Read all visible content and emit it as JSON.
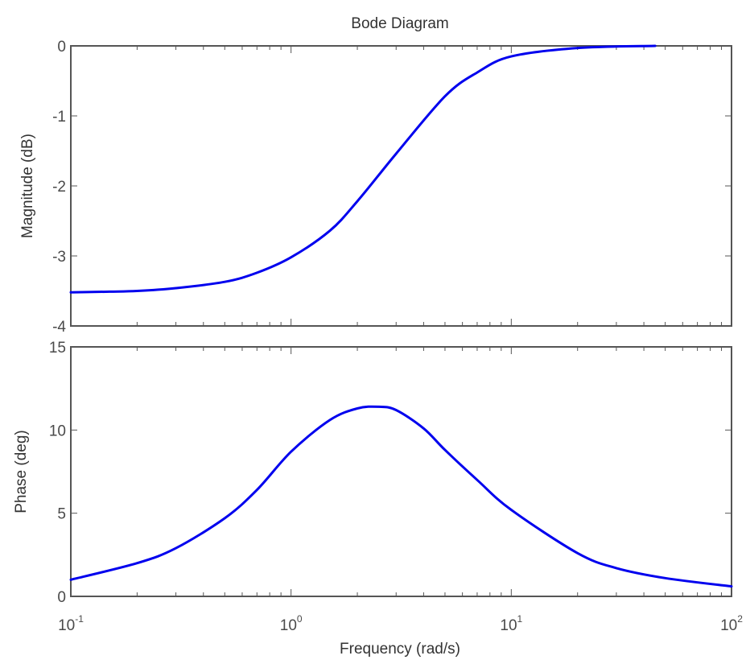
{
  "chart_data": {
    "type": "line",
    "title": "Bode Diagram",
    "xlabel": "Frequency  (rad/s)",
    "x_scale": "log",
    "xlim": [
      0.1,
      100
    ],
    "x_ticks": [
      {
        "value": 0.1,
        "base": "10",
        "exp": "-1"
      },
      {
        "value": 1,
        "base": "10",
        "exp": "0"
      },
      {
        "value": 10,
        "base": "10",
        "exp": "1"
      },
      {
        "value": 100,
        "base": "10",
        "exp": "2"
      }
    ],
    "line_color": "#0000ee",
    "panels": [
      {
        "name": "magnitude",
        "ylabel": "Magnitude (dB)",
        "ylim": [
          -4,
          0
        ],
        "y_ticks": [
          "-4",
          "-3",
          "-2",
          "-1",
          "0"
        ],
        "x": [
          0.1,
          0.15,
          0.2,
          0.3,
          0.5,
          0.7,
          1.0,
          1.5,
          2.0,
          3.0,
          5.0,
          7.0,
          10,
          20,
          45
        ],
        "y": [
          -3.52,
          -3.51,
          -3.5,
          -3.46,
          -3.37,
          -3.24,
          -3.02,
          -2.64,
          -2.22,
          -1.54,
          -0.72,
          -0.38,
          -0.15,
          -0.03,
          0.0
        ]
      },
      {
        "name": "phase",
        "ylabel": "Phase (deg)",
        "ylim": [
          0,
          15
        ],
        "y_ticks": [
          "0",
          "5",
          "10",
          "15"
        ],
        "x": [
          0.1,
          0.2,
          0.3,
          0.5,
          0.7,
          1.0,
          1.5,
          2.0,
          2.5,
          3.0,
          4.0,
          5.0,
          7.0,
          10,
          20,
          30,
          50,
          100
        ],
        "y": [
          1.0,
          2.0,
          2.9,
          4.7,
          6.4,
          8.7,
          10.6,
          11.3,
          11.4,
          11.2,
          10.1,
          8.8,
          7.0,
          5.2,
          2.6,
          1.7,
          1.1,
          0.6
        ]
      }
    ]
  }
}
